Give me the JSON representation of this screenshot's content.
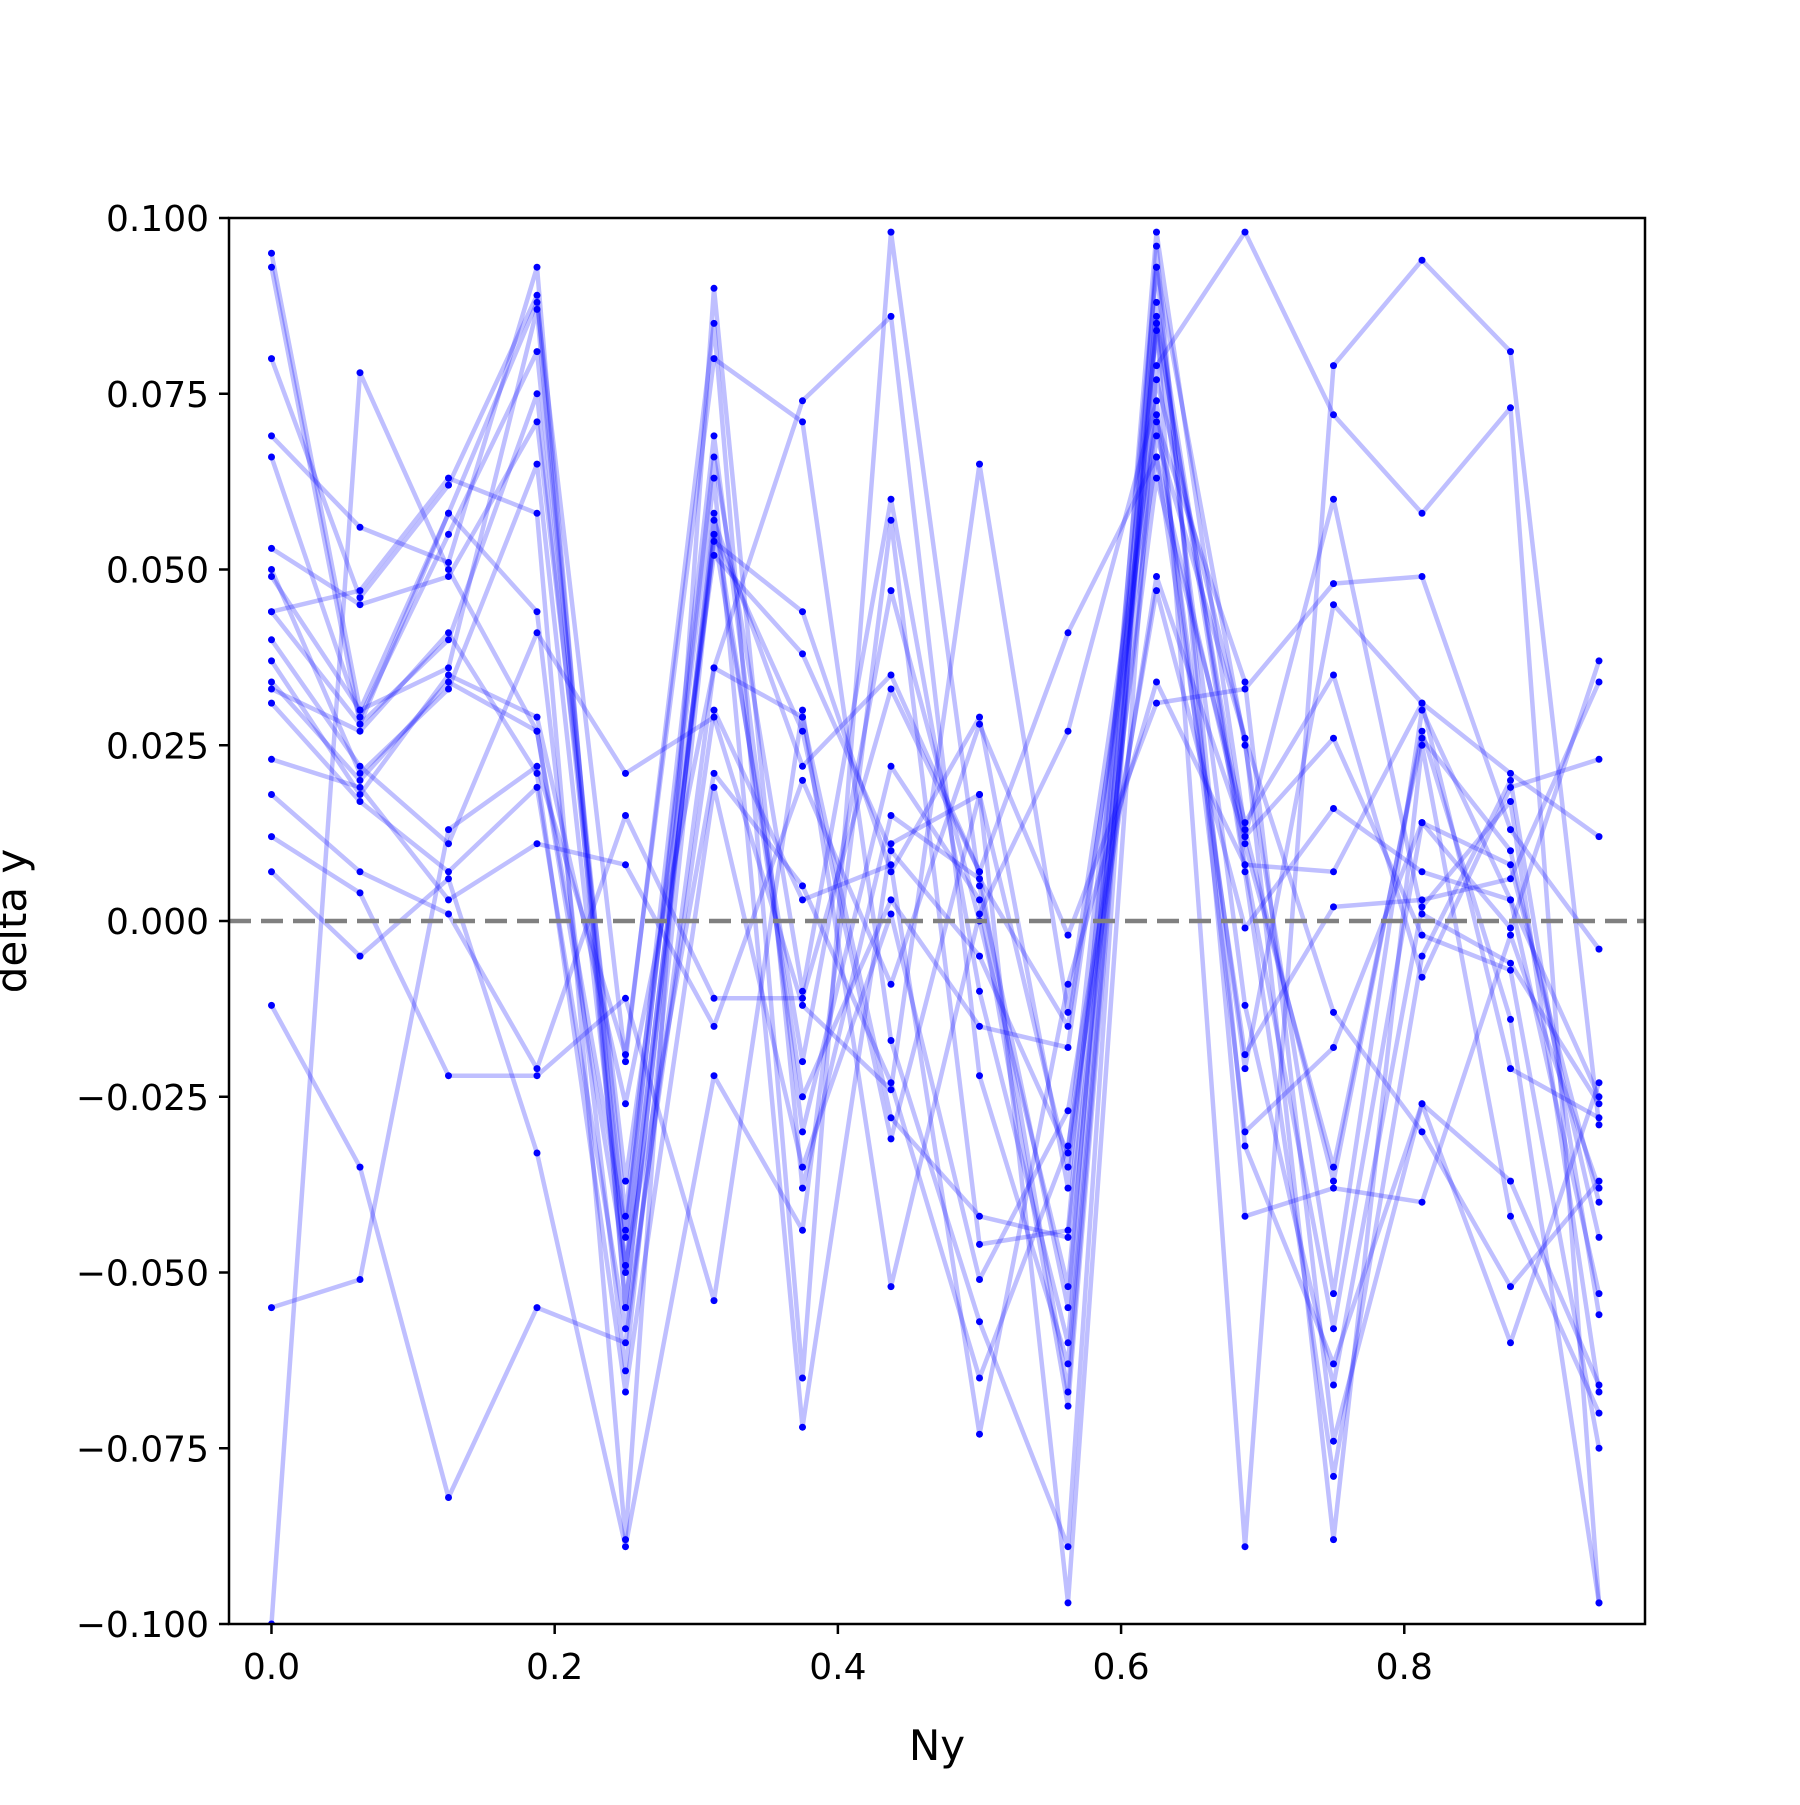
{
  "chart_data": {
    "type": "line",
    "title": "",
    "xlabel": "Ny",
    "ylabel": "delta y",
    "xlim": [
      -0.03,
      0.97
    ],
    "ylim": [
      -0.1,
      0.1
    ],
    "x_ticks": [
      0.0,
      0.2,
      0.4,
      0.6,
      0.8
    ],
    "x_tick_labels": [
      "0.0",
      "0.2",
      "0.4",
      "0.6",
      "0.8"
    ],
    "y_ticks": [
      0.1,
      0.075,
      0.05,
      0.025,
      0.0,
      -0.025,
      -0.05,
      -0.075,
      -0.1
    ],
    "y_tick_labels": [
      "0.100",
      "0.075",
      "0.050",
      "0.025",
      "0.000",
      "−0.025",
      "−0.050",
      "−0.075",
      "−0.100"
    ],
    "grid": false,
    "legend": "none",
    "reference_line": {
      "y": 0.0,
      "style": "dashed",
      "color": "#808080"
    },
    "series_style": {
      "color": "#0000ff",
      "line_alpha": 0.25,
      "marker": "dot"
    },
    "x": [
      0.0,
      0.0625,
      0.125,
      0.1875,
      0.25,
      0.3125,
      0.375,
      0.4375,
      0.5,
      0.5625,
      0.625,
      0.6875,
      0.75,
      0.8125,
      0.875,
      0.9375
    ],
    "series": [
      {
        "values": [
          0.095,
          0.03,
          0.058,
          0.088,
          -0.02,
          0.085,
          -0.065,
          0.098,
          0.005,
          -0.055,
          0.098,
          0.013,
          -0.037,
          0.027,
          -0.014,
          -0.097
        ]
      },
      {
        "values": [
          0.093,
          0.028,
          0.04,
          0.075,
          -0.045,
          0.066,
          -0.01,
          0.06,
          -0.01,
          -0.06,
          0.093,
          0.025,
          -0.053,
          0.03,
          0.003,
          -0.025
        ]
      },
      {
        "values": [
          0.08,
          0.046,
          0.062,
          0.089,
          -0.05,
          0.055,
          -0.02,
          0.047,
          0.0,
          -0.052,
          0.085,
          0.011,
          -0.035,
          0.026,
          0.01,
          -0.045
        ]
      },
      {
        "values": [
          0.069,
          0.056,
          0.051,
          0.093,
          -0.055,
          0.057,
          0.022,
          0.035,
          0.007,
          -0.067,
          0.088,
          0.008,
          -0.058,
          0.014,
          0.008,
          -0.04
        ]
      },
      {
        "values": [
          0.066,
          0.029,
          0.055,
          0.081,
          -0.042,
          0.069,
          -0.03,
          0.022,
          0.003,
          -0.069,
          0.086,
          0.007,
          -0.079,
          -0.005,
          0.02,
          -0.056
        ]
      },
      {
        "values": [
          0.053,
          0.045,
          0.049,
          0.071,
          -0.037,
          0.052,
          0.038,
          0.01,
          -0.005,
          -0.033,
          0.084,
          -0.012,
          -0.066,
          0.002,
          0.017,
          -0.067
        ]
      },
      {
        "values": [
          0.05,
          0.021,
          0.033,
          0.065,
          -0.049,
          0.054,
          0.044,
          0.007,
          0.029,
          -0.038,
          0.077,
          0.026,
          -0.088,
          0.025,
          -0.042,
          -0.07
        ]
      },
      {
        "values": [
          0.049,
          0.03,
          0.036,
          0.087,
          -0.055,
          0.058,
          -0.025,
          0.003,
          -0.015,
          -0.018,
          0.071,
          0.034,
          -0.074,
          -0.026,
          -0.06,
          -0.023
        ]
      },
      {
        "values": [
          0.044,
          0.047,
          0.063,
          0.058,
          -0.088,
          0.09,
          -0.038,
          0.015,
          0.006,
          -0.015,
          0.066,
          0.012,
          0.06,
          0.001,
          -0.006,
          -0.026
        ]
      },
      {
        "values": [
          0.044,
          0.028,
          0.058,
          0.044,
          -0.064,
          0.055,
          0.027,
          -0.031,
          0.018,
          -0.035,
          0.063,
          0.014,
          0.035,
          -0.008,
          0.019,
          0.023
        ]
      },
      {
        "values": [
          0.04,
          0.022,
          0.011,
          0.041,
          0.021,
          0.029,
          -0.012,
          -0.024,
          0.065,
          -0.013,
          0.072,
          -0.021,
          0.045,
          0.031,
          -0.021,
          -0.028
        ]
      },
      {
        "values": [
          0.037,
          0.018,
          0.035,
          0.029,
          -0.026,
          0.036,
          0.029,
          -0.028,
          -0.042,
          -0.045,
          0.069,
          0.026,
          -0.013,
          -0.03,
          -0.052,
          -0.037
        ]
      },
      {
        "values": [
          0.034,
          0.02,
          0.034,
          0.027,
          -0.049,
          0.021,
          0.005,
          -0.023,
          -0.065,
          -0.032,
          0.049,
          0.012,
          0.026,
          -0.002,
          -0.007,
          -0.075
        ]
      },
      {
        "values": [
          0.033,
          0.027,
          0.041,
          0.021,
          -0.067,
          0.019,
          -0.035,
          0.001,
          -0.051,
          -0.027,
          0.047,
          -0.001,
          0.016,
          0.007,
          0.003,
          -0.053
        ]
      },
      {
        "values": [
          0.031,
          0.017,
          0.007,
          0.019,
          -0.058,
          0.03,
          0.003,
          0.008,
          -0.073,
          -0.009,
          0.034,
          0.008,
          0.007,
          0.031,
          0.021,
          0.012
        ]
      },
      {
        "values": [
          0.023,
          0.019,
          0.003,
          0.011,
          0.008,
          -0.015,
          0.02,
          -0.009,
          0.028,
          -0.002,
          0.031,
          0.033,
          0.048,
          0.049,
          0.013,
          -0.004
        ]
      },
      {
        "values": [
          0.018,
          0.007,
          0.001,
          -0.021,
          0.015,
          -0.011,
          -0.011,
          0.033,
          0.007,
          0.041,
          0.066,
          -0.019,
          0.002,
          0.003,
          0.006,
          0.034
        ]
      },
      {
        "values": [
          0.012,
          0.004,
          -0.022,
          -0.022,
          -0.011,
          -0.054,
          0.03,
          -0.052,
          0.001,
          0.027,
          0.074,
          -0.03,
          -0.018,
          0.014,
          -0.001,
          0.037
        ]
      },
      {
        "values": [
          0.007,
          -0.005,
          0.006,
          -0.033,
          -0.089,
          -0.022,
          -0.044,
          0.057,
          -0.046,
          -0.044,
          0.093,
          -0.032,
          -0.063,
          -0.026,
          -0.037,
          -0.066
        ]
      },
      {
        "values": [
          -0.012,
          -0.035,
          -0.082,
          -0.055,
          -0.06,
          0.036,
          0.074,
          0.086,
          -0.022,
          -0.063,
          0.085,
          -0.089,
          0.079,
          0.094,
          0.081,
          -0.029
        ]
      },
      {
        "values": [
          -0.055,
          -0.051,
          0.013,
          0.022,
          -0.019,
          0.08,
          0.071,
          -0.017,
          -0.057,
          -0.089,
          0.096,
          -0.042,
          -0.038,
          -0.04,
          -0.002,
          -0.038
        ]
      },
      {
        "values": [
          -0.1,
          0.078,
          0.05,
          0.027,
          -0.044,
          0.063,
          -0.072,
          0.011,
          0.018,
          -0.097,
          0.079,
          0.098,
          0.072,
          0.058,
          0.073,
          -0.097
        ]
      }
    ]
  }
}
